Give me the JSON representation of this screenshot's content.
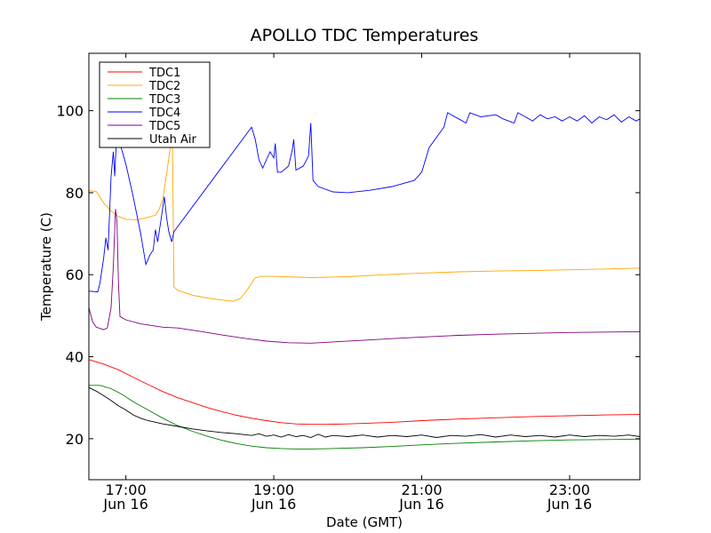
{
  "chart_data": {
    "type": "line",
    "title": "APOLLO TDC Temperatures",
    "xlabel": "Date (GMT)",
    "ylabel": "Temperature (C)",
    "x_unit": "hours since Jun 16 00:00 GMT",
    "xlim": [
      16.5,
      23.95
    ],
    "ylim": [
      10,
      114
    ],
    "grid": false,
    "legend_position": "top-left",
    "x_ticks": [
      {
        "value": 17,
        "label": "17:00",
        "sublabel": "Jun 16"
      },
      {
        "value": 19,
        "label": "19:00",
        "sublabel": "Jun 16"
      },
      {
        "value": 21,
        "label": "21:00",
        "sublabel": "Jun 16"
      },
      {
        "value": 23,
        "label": "23:00",
        "sublabel": "Jun 16"
      }
    ],
    "y_ticks": [
      {
        "value": 20,
        "label": "20"
      },
      {
        "value": 40,
        "label": "40"
      },
      {
        "value": 60,
        "label": "60"
      },
      {
        "value": 80,
        "label": "80"
      },
      {
        "value": 100,
        "label": "100"
      }
    ],
    "series": [
      {
        "name": "TDC1",
        "color": "#ff0000",
        "points": [
          [
            16.5,
            39.3
          ],
          [
            16.7,
            38.2
          ],
          [
            16.9,
            36.8
          ],
          [
            17.1,
            35.0
          ],
          [
            17.3,
            33.2
          ],
          [
            17.5,
            31.5
          ],
          [
            17.7,
            30.0
          ],
          [
            17.9,
            28.8
          ],
          [
            18.1,
            27.6
          ],
          [
            18.3,
            26.6
          ],
          [
            18.5,
            25.7
          ],
          [
            18.7,
            25.0
          ],
          [
            18.9,
            24.4
          ],
          [
            19.1,
            23.9
          ],
          [
            19.3,
            23.6
          ],
          [
            19.5,
            23.5
          ],
          [
            19.7,
            23.5
          ],
          [
            20.0,
            23.6
          ],
          [
            20.3,
            23.8
          ],
          [
            20.6,
            24.0
          ],
          [
            21.0,
            24.4
          ],
          [
            21.5,
            24.8
          ],
          [
            22.0,
            25.1
          ],
          [
            22.5,
            25.4
          ],
          [
            23.0,
            25.6
          ],
          [
            23.5,
            25.8
          ],
          [
            23.95,
            25.9
          ]
        ]
      },
      {
        "name": "TDC2",
        "color": "#ffa500",
        "points": [
          [
            16.5,
            80.5
          ],
          [
            16.6,
            80.3
          ],
          [
            16.7,
            77.5
          ],
          [
            16.8,
            75.5
          ],
          [
            16.9,
            74.2
          ],
          [
            17.0,
            73.5
          ],
          [
            17.15,
            73.4
          ],
          [
            17.3,
            74.0
          ],
          [
            17.4,
            74.5
          ],
          [
            17.45,
            76.0
          ],
          [
            17.5,
            78.5
          ],
          [
            17.55,
            84.5
          ],
          [
            17.6,
            91.0
          ],
          [
            17.63,
            94.0
          ],
          [
            17.65,
            57.0
          ],
          [
            17.7,
            56.2
          ],
          [
            17.9,
            55.0
          ],
          [
            18.1,
            54.3
          ],
          [
            18.3,
            53.8
          ],
          [
            18.45,
            53.5
          ],
          [
            18.55,
            54.2
          ],
          [
            18.65,
            56.5
          ],
          [
            18.75,
            59.3
          ],
          [
            18.85,
            59.6
          ],
          [
            19.0,
            59.6
          ],
          [
            19.5,
            59.3
          ],
          [
            20.0,
            59.5
          ],
          [
            20.5,
            60.0
          ],
          [
            21.0,
            60.4
          ],
          [
            21.5,
            60.7
          ],
          [
            22.0,
            60.9
          ],
          [
            22.5,
            61.0
          ],
          [
            23.0,
            61.2
          ],
          [
            23.5,
            61.4
          ],
          [
            23.95,
            61.6
          ]
        ]
      },
      {
        "name": "TDC3",
        "color": "#008000",
        "points": [
          [
            16.5,
            33.0
          ],
          [
            16.65,
            33.0
          ],
          [
            16.8,
            32.2
          ],
          [
            16.95,
            30.8
          ],
          [
            17.1,
            29.0
          ],
          [
            17.3,
            27.0
          ],
          [
            17.5,
            25.0
          ],
          [
            17.7,
            23.2
          ],
          [
            17.9,
            21.8
          ],
          [
            18.1,
            20.6
          ],
          [
            18.3,
            19.6
          ],
          [
            18.5,
            18.8
          ],
          [
            18.7,
            18.2
          ],
          [
            18.9,
            17.8
          ],
          [
            19.1,
            17.6
          ],
          [
            19.3,
            17.5
          ],
          [
            19.5,
            17.5
          ],
          [
            19.8,
            17.6
          ],
          [
            20.2,
            17.8
          ],
          [
            20.6,
            18.1
          ],
          [
            21.0,
            18.5
          ],
          [
            21.5,
            18.9
          ],
          [
            22.0,
            19.2
          ],
          [
            22.5,
            19.5
          ],
          [
            23.0,
            19.7
          ],
          [
            23.5,
            19.8
          ],
          [
            23.95,
            19.9
          ]
        ]
      },
      {
        "name": "TDC4",
        "color": "#0000ff",
        "points": [
          [
            16.5,
            56.0
          ],
          [
            16.62,
            55.8
          ],
          [
            16.65,
            58.0
          ],
          [
            16.7,
            64.0
          ],
          [
            16.73,
            69.0
          ],
          [
            16.76,
            66.0
          ],
          [
            16.8,
            84.0
          ],
          [
            16.83,
            90.0
          ],
          [
            16.85,
            84.0
          ],
          [
            16.88,
            96.0
          ],
          [
            16.92,
            92.0
          ],
          [
            17.0,
            87.0
          ],
          [
            17.1,
            79.0
          ],
          [
            17.2,
            70.0
          ],
          [
            17.27,
            62.5
          ],
          [
            17.33,
            65.0
          ],
          [
            17.37,
            66.0
          ],
          [
            17.4,
            71.0
          ],
          [
            17.43,
            68.0
          ],
          [
            17.48,
            74.0
          ],
          [
            17.52,
            79.0
          ],
          [
            17.55,
            74.0
          ],
          [
            17.58,
            70.5
          ],
          [
            17.62,
            68.0
          ],
          [
            17.65,
            70.5
          ],
          [
            18.7,
            96.0
          ],
          [
            18.75,
            93.0
          ],
          [
            18.8,
            88.0
          ],
          [
            18.85,
            86.0
          ],
          [
            18.9,
            88.0
          ],
          [
            18.95,
            90.0
          ],
          [
            19.0,
            88.5
          ],
          [
            19.02,
            92.0
          ],
          [
            19.05,
            85.0
          ],
          [
            19.1,
            85.0
          ],
          [
            19.2,
            86.5
          ],
          [
            19.25,
            90.5
          ],
          [
            19.27,
            93.0
          ],
          [
            19.3,
            85.5
          ],
          [
            19.4,
            86.5
          ],
          [
            19.47,
            89.0
          ],
          [
            19.5,
            97.0
          ],
          [
            19.53,
            83.0
          ],
          [
            19.6,
            81.5
          ],
          [
            19.8,
            80.2
          ],
          [
            20.0,
            80.0
          ],
          [
            20.3,
            80.6
          ],
          [
            20.6,
            81.5
          ],
          [
            20.9,
            83.0
          ],
          [
            21.0,
            85.0
          ],
          [
            21.05,
            88.0
          ],
          [
            21.1,
            91.0
          ],
          [
            21.3,
            96.0
          ],
          [
            21.35,
            99.5
          ],
          [
            21.5,
            98.0
          ],
          [
            21.6,
            97.0
          ],
          [
            21.65,
            99.5
          ],
          [
            21.8,
            98.5
          ],
          [
            22.0,
            99.0
          ],
          [
            22.1,
            98.0
          ],
          [
            22.25,
            97.0
          ],
          [
            22.3,
            99.5
          ],
          [
            22.4,
            98.5
          ],
          [
            22.5,
            97.5
          ],
          [
            22.6,
            99.0
          ],
          [
            22.7,
            98.0
          ],
          [
            22.8,
            98.5
          ],
          [
            22.9,
            97.5
          ],
          [
            23.0,
            98.5
          ],
          [
            23.1,
            97.5
          ],
          [
            23.2,
            98.8
          ],
          [
            23.3,
            97.0
          ],
          [
            23.4,
            98.5
          ],
          [
            23.5,
            97.8
          ],
          [
            23.6,
            99.0
          ],
          [
            23.7,
            97.2
          ],
          [
            23.8,
            98.5
          ],
          [
            23.9,
            97.5
          ],
          [
            23.95,
            98.0
          ]
        ]
      },
      {
        "name": "TDC5",
        "color": "#800080",
        "points": [
          [
            16.5,
            52.0
          ],
          [
            16.55,
            48.5
          ],
          [
            16.6,
            47.2
          ],
          [
            16.7,
            46.6
          ],
          [
            16.75,
            47.0
          ],
          [
            16.8,
            52.0
          ],
          [
            16.83,
            62.0
          ],
          [
            16.86,
            76.0
          ],
          [
            16.88,
            73.0
          ],
          [
            16.9,
            58.0
          ],
          [
            16.92,
            49.8
          ],
          [
            17.0,
            49.0
          ],
          [
            17.2,
            48.0
          ],
          [
            17.5,
            47.2
          ],
          [
            17.7,
            47.0
          ],
          [
            18.0,
            46.2
          ],
          [
            18.3,
            45.3
          ],
          [
            18.6,
            44.5
          ],
          [
            18.9,
            43.8
          ],
          [
            19.2,
            43.4
          ],
          [
            19.5,
            43.3
          ],
          [
            19.8,
            43.6
          ],
          [
            20.2,
            44.0
          ],
          [
            20.6,
            44.4
          ],
          [
            21.0,
            44.8
          ],
          [
            21.5,
            45.2
          ],
          [
            22.0,
            45.5
          ],
          [
            22.5,
            45.7
          ],
          [
            23.0,
            45.9
          ],
          [
            23.5,
            46.0
          ],
          [
            23.95,
            46.1
          ]
        ]
      },
      {
        "name": "Utah Air",
        "color": "#000000",
        "points": [
          [
            16.5,
            32.5
          ],
          [
            16.6,
            31.6
          ],
          [
            16.7,
            30.5
          ],
          [
            16.8,
            29.3
          ],
          [
            16.9,
            28.0
          ],
          [
            17.0,
            27.0
          ],
          [
            17.1,
            25.8
          ],
          [
            17.2,
            25.0
          ],
          [
            17.3,
            24.4
          ],
          [
            17.5,
            23.6
          ],
          [
            17.7,
            23.0
          ],
          [
            17.9,
            22.4
          ],
          [
            18.1,
            21.9
          ],
          [
            18.3,
            21.5
          ],
          [
            18.5,
            21.2
          ],
          [
            18.7,
            20.8
          ],
          [
            18.8,
            21.2
          ],
          [
            18.9,
            20.6
          ],
          [
            19.0,
            20.9
          ],
          [
            19.1,
            20.4
          ],
          [
            19.2,
            21.0
          ],
          [
            19.3,
            20.5
          ],
          [
            19.4,
            20.8
          ],
          [
            19.5,
            20.3
          ],
          [
            19.6,
            21.1
          ],
          [
            19.7,
            20.4
          ],
          [
            19.8,
            20.8
          ],
          [
            20.0,
            20.5
          ],
          [
            20.2,
            20.9
          ],
          [
            20.4,
            20.4
          ],
          [
            20.6,
            20.8
          ],
          [
            20.8,
            20.5
          ],
          [
            21.0,
            20.9
          ],
          [
            21.2,
            20.3
          ],
          [
            21.4,
            20.8
          ],
          [
            21.6,
            20.6
          ],
          [
            21.8,
            21.0
          ],
          [
            22.0,
            20.4
          ],
          [
            22.2,
            20.9
          ],
          [
            22.4,
            20.5
          ],
          [
            22.6,
            20.8
          ],
          [
            22.8,
            20.4
          ],
          [
            23.0,
            20.9
          ],
          [
            23.2,
            20.5
          ],
          [
            23.4,
            20.8
          ],
          [
            23.6,
            20.6
          ],
          [
            23.8,
            20.9
          ],
          [
            23.95,
            20.5
          ]
        ]
      }
    ]
  }
}
